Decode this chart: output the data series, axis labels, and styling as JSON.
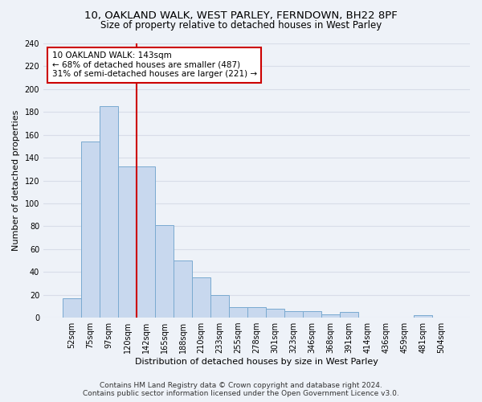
{
  "title_line1": "10, OAKLAND WALK, WEST PARLEY, FERNDOWN, BH22 8PF",
  "title_line2": "Size of property relative to detached houses in West Parley",
  "xlabel": "Distribution of detached houses by size in West Parley",
  "ylabel": "Number of detached properties",
  "bar_color": "#c8d8ee",
  "bar_edge_color": "#7aaad0",
  "marker_line_color": "#cc0000",
  "categories": [
    "52sqm",
    "75sqm",
    "97sqm",
    "120sqm",
    "142sqm",
    "165sqm",
    "188sqm",
    "210sqm",
    "233sqm",
    "255sqm",
    "278sqm",
    "301sqm",
    "323sqm",
    "346sqm",
    "368sqm",
    "391sqm",
    "414sqm",
    "436sqm",
    "459sqm",
    "481sqm",
    "504sqm"
  ],
  "values": [
    17,
    154,
    185,
    132,
    132,
    81,
    50,
    35,
    20,
    9,
    9,
    8,
    6,
    6,
    3,
    5,
    0,
    0,
    0,
    2,
    0
  ],
  "subject_bin_index": 3,
  "annotation_text": "10 OAKLAND WALK: 143sqm\n← 68% of detached houses are smaller (487)\n31% of semi-detached houses are larger (221) →",
  "annotation_box_color": "#ffffff",
  "annotation_box_edge_color": "#cc0000",
  "ylim": [
    0,
    240
  ],
  "yticks": [
    0,
    20,
    40,
    60,
    80,
    100,
    120,
    140,
    160,
    180,
    200,
    220,
    240
  ],
  "footer_line1": "Contains HM Land Registry data © Crown copyright and database right 2024.",
  "footer_line2": "Contains public sector information licensed under the Open Government Licence v3.0.",
  "background_color": "#eef2f8",
  "plot_bg_color": "#eef2f8",
  "grid_color": "#d8dde8",
  "title_fontsize": 9.5,
  "subtitle_fontsize": 8.5,
  "axis_label_fontsize": 8,
  "tick_fontsize": 7,
  "annotation_fontsize": 7.5,
  "footer_fontsize": 6.5
}
